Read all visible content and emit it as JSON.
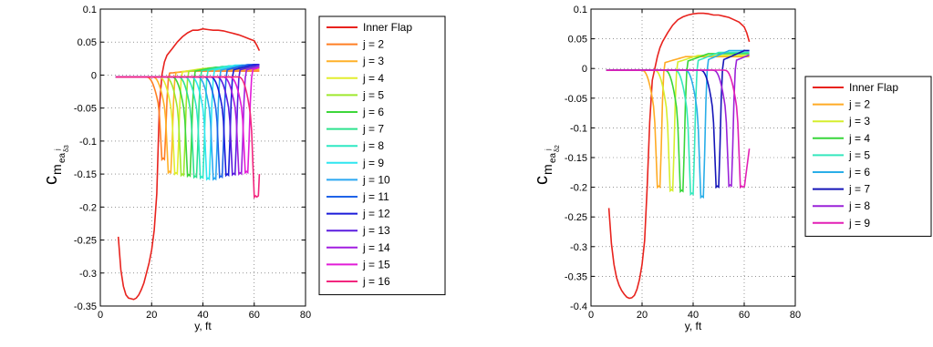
{
  "chart_data": [
    {
      "type": "line",
      "xlabel": "y, ft",
      "ylabel_main": "c",
      "ylabel_sub": "m",
      "ylabel_subsub": "ea",
      "ylabel_sup": "j",
      "ylabel_subsubsub": "δ3",
      "xlim": [
        0,
        80
      ],
      "ylim": [
        -0.35,
        0.1
      ],
      "xticks": [
        "0",
        "20",
        "40",
        "60",
        "80"
      ],
      "yticks": [
        "0.1",
        "0.05",
        "0",
        "-0.05",
        "-0.1",
        "-0.15",
        "-0.2",
        "-0.25",
        "-0.3",
        "-0.35"
      ],
      "grid": true,
      "legend_position": "outside-right-top",
      "series": [
        {
          "name": "Inner Flap",
          "color": "#e8231e",
          "x": [
            7,
            8,
            9,
            10,
            11,
            12,
            13,
            14,
            15,
            16,
            17,
            18,
            19,
            20,
            21,
            22,
            23,
            24,
            25,
            26,
            27,
            28,
            30,
            32,
            34,
            36,
            38,
            40,
            42,
            44,
            46,
            48,
            50,
            52,
            54,
            56,
            58,
            60,
            61,
            62
          ],
          "y": [
            -0.245,
            -0.295,
            -0.32,
            -0.333,
            -0.338,
            -0.339,
            -0.34,
            -0.338,
            -0.333,
            -0.325,
            -0.315,
            -0.3,
            -0.285,
            -0.265,
            -0.235,
            -0.18,
            -0.05,
            0.0,
            0.02,
            0.03,
            0.035,
            0.04,
            0.05,
            0.058,
            0.064,
            0.068,
            0.068,
            0.07,
            0.069,
            0.068,
            0.068,
            0.067,
            0.065,
            0.063,
            0.061,
            0.058,
            0.055,
            0.052,
            0.045,
            0.037
          ]
        },
        {
          "name": "j = 2",
          "color": "#ff7f24",
          "dip": 24,
          "depth": -0.128,
          "recover": 0.006
        },
        {
          "name": "j = 3",
          "color": "#ffb128",
          "dip": 26.5,
          "depth": -0.148,
          "recover": 0.008
        },
        {
          "name": "j = 4",
          "color": "#e2ee2e",
          "dip": 29,
          "depth": -0.15,
          "recover": 0.01
        },
        {
          "name": "j = 5",
          "color": "#9fe82e",
          "dip": 31.5,
          "depth": -0.152,
          "recover": 0.011
        },
        {
          "name": "j = 6",
          "color": "#3dd63a",
          "dip": 34,
          "depth": -0.153,
          "recover": 0.012
        },
        {
          "name": "j = 7",
          "color": "#2ee28e",
          "dip": 36.5,
          "depth": -0.155,
          "recover": 0.013
        },
        {
          "name": "j = 8",
          "color": "#2ee8c4",
          "dip": 39,
          "depth": -0.156,
          "recover": 0.014
        },
        {
          "name": "j = 9",
          "color": "#2ee6f0",
          "dip": 41.5,
          "depth": -0.158,
          "recover": 0.015
        },
        {
          "name": "j = 10",
          "color": "#2ba8f2",
          "dip": 44,
          "depth": -0.158,
          "recover": 0.015
        },
        {
          "name": "j = 11",
          "color": "#1f63e8",
          "dip": 46.5,
          "depth": -0.155,
          "recover": 0.016
        },
        {
          "name": "j = 12",
          "color": "#1b1bd9",
          "dip": 49,
          "depth": -0.152,
          "recover": 0.016
        },
        {
          "name": "j = 13",
          "color": "#5a1ddf",
          "dip": 51.5,
          "depth": -0.151,
          "recover": 0.016
        },
        {
          "name": "j = 14",
          "color": "#a21ee0",
          "dip": 54,
          "depth": -0.15,
          "recover": 0.016
        },
        {
          "name": "j = 15",
          "color": "#e21cd7",
          "dip": 56.5,
          "depth": -0.148,
          "recover": 0.017
        },
        {
          "name": "j = 16",
          "color": "#f2267e",
          "dip": 60,
          "depth": -0.185,
          "recover": -0.15
        }
      ]
    },
    {
      "type": "line",
      "xlabel": "y, ft",
      "ylabel_main": "c",
      "ylabel_sub": "m",
      "ylabel_subsub": "ea",
      "ylabel_sup": "j",
      "ylabel_subsubsub": "δ2",
      "xlim": [
        0,
        80
      ],
      "ylim": [
        -0.4,
        0.1
      ],
      "xticks": [
        "0",
        "20",
        "40",
        "60",
        "80"
      ],
      "yticks": [
        "0.1",
        "0.05",
        "0",
        "-0.05",
        "-0.1",
        "-0.15",
        "-0.2",
        "-0.25",
        "-0.3",
        "-0.35",
        "-0.4"
      ],
      "grid": true,
      "legend_position": "outside-right",
      "series": [
        {
          "name": "Inner Flap",
          "color": "#e8231e",
          "x": [
            7,
            8,
            9,
            10,
            11,
            12,
            13,
            14,
            15,
            16,
            17,
            18,
            19,
            20,
            21,
            22,
            23,
            24,
            25,
            26,
            27,
            28,
            30,
            32,
            34,
            36,
            38,
            40,
            42,
            44,
            46,
            48,
            50,
            52,
            54,
            56,
            58,
            60,
            61,
            62
          ],
          "y": [
            -0.235,
            -0.295,
            -0.33,
            -0.352,
            -0.365,
            -0.374,
            -0.38,
            -0.385,
            -0.387,
            -0.386,
            -0.382,
            -0.372,
            -0.355,
            -0.33,
            -0.29,
            -0.2,
            -0.09,
            -0.02,
            0.0,
            0.02,
            0.035,
            0.045,
            0.06,
            0.073,
            0.082,
            0.087,
            0.09,
            0.092,
            0.093,
            0.093,
            0.092,
            0.09,
            0.09,
            0.088,
            0.086,
            0.082,
            0.078,
            0.07,
            0.06,
            0.045
          ]
        },
        {
          "name": "j = 2",
          "color": "#ffab24",
          "dip": 26,
          "depth": -0.2,
          "recover": 0.02
        },
        {
          "name": "j = 3",
          "color": "#d6ee2e",
          "dip": 31,
          "depth": -0.206,
          "recover": 0.022
        },
        {
          "name": "j = 4",
          "color": "#38d63a",
          "dip": 35,
          "depth": -0.207,
          "recover": 0.025
        },
        {
          "name": "j = 5",
          "color": "#35e8bd",
          "dip": 39,
          "depth": -0.212,
          "recover": 0.027
        },
        {
          "name": "j = 6",
          "color": "#2aaee8",
          "dip": 43,
          "depth": -0.217,
          "recover": 0.03
        },
        {
          "name": "j = 7",
          "color": "#1515b8",
          "dip": 49,
          "depth": -0.2,
          "recover": 0.03
        },
        {
          "name": "j = 8",
          "color": "#9a22d8",
          "dip": 54,
          "depth": -0.198,
          "recover": 0.028
        },
        {
          "name": "j = 9",
          "color": "#e21fb5",
          "dip": 58.5,
          "depth": -0.2,
          "recover": -0.135
        }
      ]
    }
  ]
}
